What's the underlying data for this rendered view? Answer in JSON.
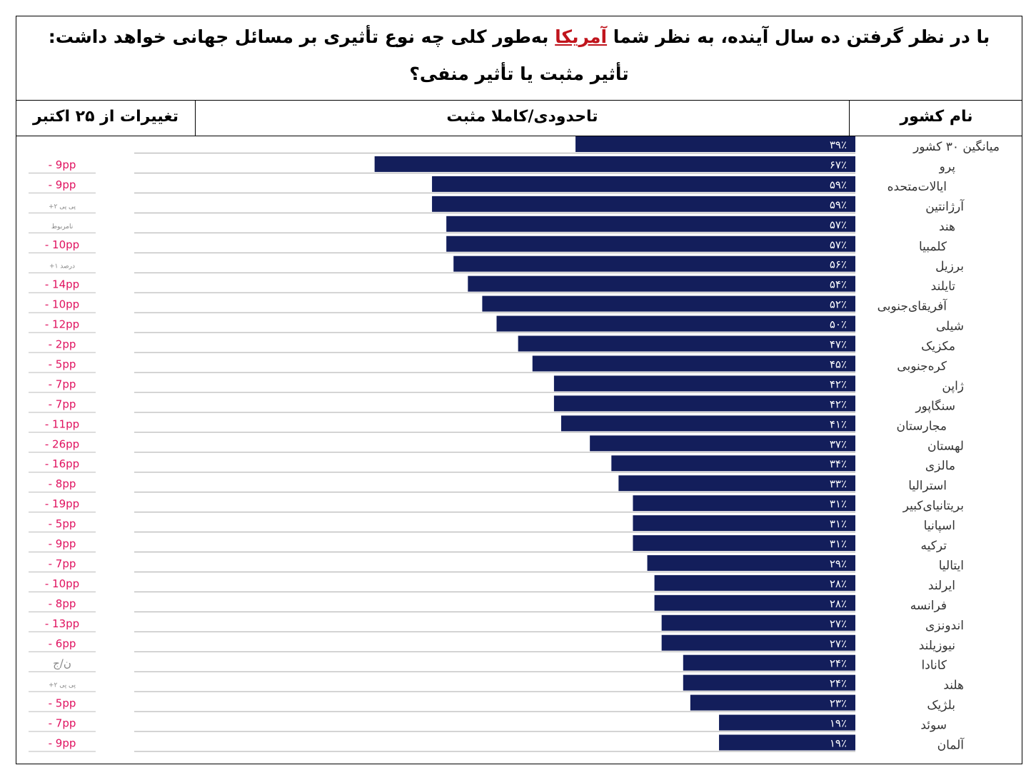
{
  "title": {
    "line1_before": "با در نظر گرفتن ده سال آینده، به نظر شما ",
    "line1_highlight": "آمریکا",
    "line1_after": " به‌طور کلی چه نوع تأثیری بر مسائل جهانی خواهد داشت:",
    "line2": "تأثیر مثبت یا تأثیر منفی؟"
  },
  "columns": {
    "country": "نام کشور",
    "positive": "تاحدودی/کاملا مثبت",
    "change": "تغییرات از ۲۵ اکتبر"
  },
  "colors": {
    "bar": "#131e5b",
    "change_negative": "#e0115f",
    "change_neutral": "#888888"
  },
  "chart_data": {
    "type": "bar",
    "orientation": "horizontal",
    "categories": [
      "میانگین ۳۰ کشور",
      "پرو",
      "ایالات‌متحده",
      "آرژانتین",
      "هند",
      "کلمبیا",
      "برزیل",
      "تایلند",
      "آفریقای‌جنوبی",
      "شیلی",
      "مکزیک",
      "کره‌جنوبی",
      "ژاپن",
      "سنگاپور",
      "مجارستان",
      "لهستان",
      "مالزی",
      "استرالیا",
      "بریتانیای‌کبیر",
      "اسپانیا",
      "ترکیه",
      "ایتالیا",
      "ایرلند",
      "فرانسه",
      "اندونزی",
      "نیوزیلند",
      "کانادا",
      "هلند",
      "بلژیک",
      "سوئد",
      "آلمان"
    ],
    "values": [
      39,
      67,
      59,
      59,
      57,
      57,
      56,
      54,
      52,
      50,
      47,
      45,
      42,
      42,
      41,
      37,
      34,
      33,
      31,
      31,
      31,
      29,
      28,
      28,
      27,
      27,
      24,
      24,
      23,
      19,
      19
    ],
    "value_labels": [
      "۳۹٪",
      "۶۷٪",
      "۵۹٪",
      "۵۹٪",
      "۵۷٪",
      "۵۷٪",
      "۵۶٪",
      "۵۴٪",
      "۵۲٪",
      "۵۰٪",
      "۴۷٪",
      "۴۵٪",
      "۴۲٪",
      "۴۲٪",
      "۴۱٪",
      "۳۷٪",
      "۳۴٪",
      "۳۳٪",
      "۳۱٪",
      "۳۱٪",
      "۳۱٪",
      "۲۹٪",
      "۲۸٪",
      "۲۸٪",
      "۲۷٪",
      "۲۷٪",
      "۲۴٪",
      "۲۴٪",
      "۲۳٪",
      "۱۹٪",
      "۱۹٪"
    ],
    "changes": [
      "",
      "- 9pp",
      "- 9pp",
      "+۲ پی پی",
      "نامربوط",
      "- 10pp",
      "+۱ درصد",
      "- 14pp",
      "- 10pp",
      "- 12pp",
      "- 2pp",
      "- 5pp",
      "- 7pp",
      "- 7pp",
      "- 11pp",
      "- 26pp",
      "- 16pp",
      "- 8pp",
      "- 19pp",
      "- 5pp",
      "- 9pp",
      "- 7pp",
      "- 10pp",
      "- 8pp",
      "- 13pp",
      "- 6pp",
      "ن/ج",
      "+۲ پی پی",
      "- 5pp",
      "- 7pp",
      "- 9pp"
    ],
    "xlim": [
      0,
      100
    ],
    "bar_direction": "right-to-left"
  }
}
